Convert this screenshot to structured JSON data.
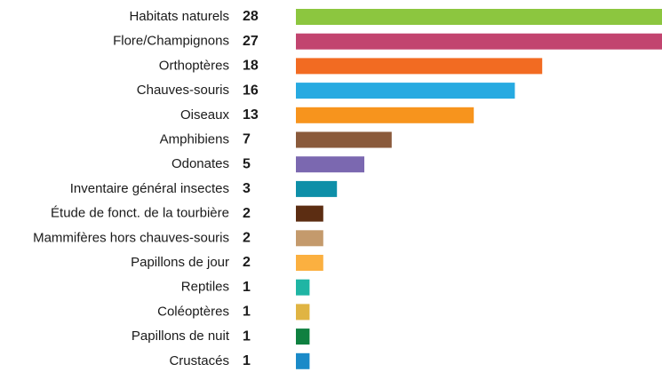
{
  "chart_data": {
    "type": "bar",
    "orientation": "horizontal",
    "categories": [
      "Habitats naturels",
      "Flore/Champignons",
      "Orthoptères",
      "Chauves-souris",
      "Oiseaux",
      "Amphibiens",
      "Odonates",
      "Inventaire général insectes",
      "Étude de fonct. de la tourbière",
      "Mammifères hors chauves-souris",
      "Papillons de jour",
      "Reptiles",
      "Coléoptères",
      "Papillons de nuit",
      "Crustacés"
    ],
    "values": [
      28,
      27,
      18,
      16,
      13,
      7,
      5,
      3,
      2,
      2,
      2,
      1,
      1,
      1,
      1
    ],
    "colors": [
      "#8cc63f",
      "#c2446f",
      "#f26b22",
      "#27aae1",
      "#f7941d",
      "#8a5a3b",
      "#7b68b0",
      "#0e8fa8",
      "#5c2d12",
      "#c49a6c",
      "#fbb040",
      "#1fb5a4",
      "#e0b443",
      "#0f8040",
      "#1a8ac8"
    ]
  }
}
